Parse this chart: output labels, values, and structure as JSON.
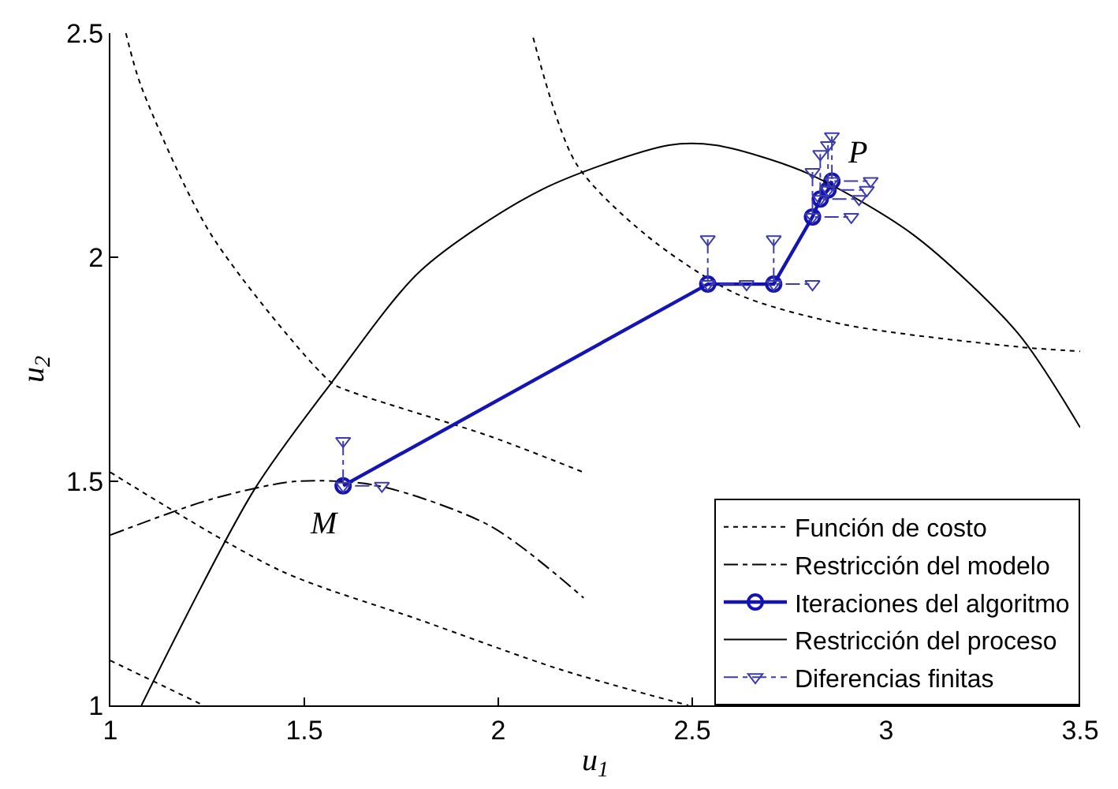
{
  "chart_data": {
    "type": "line",
    "xlabel": "u$_{1}$",
    "ylabel": "u$_{2}$",
    "xlim": [
      1,
      3.5
    ],
    "xticks": [
      1,
      1.5,
      2,
      2.5,
      3,
      3.5
    ],
    "ylim": [
      1,
      2.5
    ],
    "yticks": [
      1,
      1.5,
      2,
      2.5
    ],
    "legend": "bottom right",
    "series": [
      {
        "name": "Función de costo",
        "color": "#000000",
        "line_style": "dotted",
        "marker": "none",
        "x": [
          1.04,
          1.08,
          1.26,
          1.57,
          1.62,
          1.98,
          2.22,
          null,
          1.0,
          1.44,
          1.8,
          2.16,
          2.49,
          null,
          1.0,
          1.24,
          null,
          2.09,
          2.2,
          2.38,
          2.61,
          2.89,
          3.34,
          3.5
        ],
        "values": [
          2.5,
          2.38,
          2.05,
          1.72,
          1.7,
          1.6,
          1.52,
          null,
          1.52,
          1.3,
          1.19,
          1.08,
          1.0,
          null,
          1.1,
          1.0,
          null,
          2.49,
          2.21,
          2.05,
          1.92,
          1.85,
          1.8,
          1.79
        ]
      },
      {
        "name": "Restricción del modelo",
        "color": "#000000",
        "line_style": "dashdot",
        "marker": "none",
        "x": [
          1.0,
          1.26,
          1.48,
          1.69,
          1.98,
          2.22
        ],
        "values": [
          1.38,
          1.46,
          1.5,
          1.49,
          1.4,
          1.24
        ]
      },
      {
        "name": "Iteraciones del algoritmo",
        "color": "#1414b4",
        "line_style": "solid",
        "marker": "circle",
        "x": [
          1.6,
          2.54,
          2.71,
          2.81,
          2.83,
          2.85,
          2.86
        ],
        "values": [
          1.49,
          1.94,
          1.94,
          2.09,
          2.13,
          2.15,
          2.17
        ]
      },
      {
        "name": "Restricción del proceso",
        "color": "#000000",
        "line_style": "solid",
        "marker": "none",
        "x": [
          1.08,
          1.37,
          1.57,
          1.8,
          2.11,
          2.44,
          2.56,
          2.79,
          3.07,
          3.34,
          3.5
        ],
        "values": [
          1.0,
          1.48,
          1.72,
          1.97,
          2.15,
          2.25,
          2.25,
          2.19,
          2.05,
          1.83,
          1.62
        ]
      },
      {
        "name": "Diferencias finitas",
        "color": "#3c3caa",
        "line_style": "dashdot",
        "marker": "triangle-down",
        "x": [
          1.6,
          1.6,
          1.7,
          null,
          2.54,
          2.54,
          2.64,
          null,
          2.71,
          2.71,
          2.81,
          null,
          2.81,
          2.81,
          2.91,
          null,
          2.83,
          2.83,
          2.93,
          null,
          2.85,
          2.85,
          2.95,
          null,
          2.86,
          2.86,
          2.96
        ],
        "values": [
          1.59,
          1.49,
          1.49,
          null,
          2.04,
          1.94,
          1.94,
          null,
          2.04,
          1.94,
          1.94,
          null,
          2.19,
          2.09,
          2.09,
          null,
          2.23,
          2.13,
          2.13,
          null,
          2.25,
          2.15,
          2.15,
          null,
          2.27,
          2.17,
          2.17
        ]
      }
    ],
    "annotations": [
      {
        "text": "M",
        "x": 1.6,
        "y": 1.49
      },
      {
        "text": "P",
        "x": 2.86,
        "y": 2.17
      }
    ]
  }
}
